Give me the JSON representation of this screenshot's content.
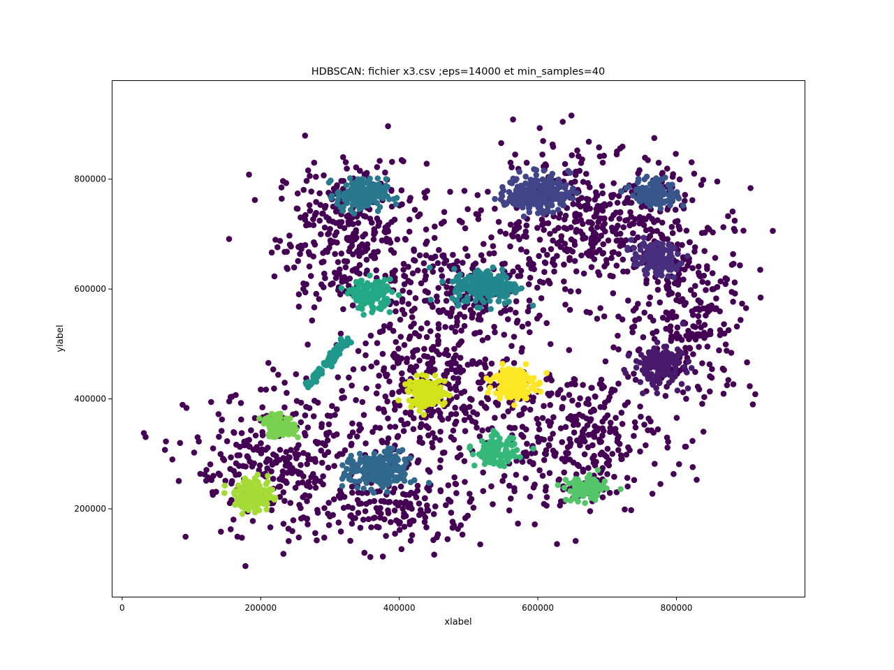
{
  "chart_data": {
    "type": "scatter",
    "title": "HDBSCAN: fichier x3.csv ;eps=14000 et min_samples=40",
    "xlabel": "xlabel",
    "ylabel": "ylabel",
    "xlim": [
      -15000,
      985000
    ],
    "ylim": [
      40000,
      980000
    ],
    "xticks": [
      0,
      200000,
      400000,
      600000,
      800000
    ],
    "yticks": [
      200000,
      400000,
      600000,
      800000
    ],
    "grid": false,
    "legend": "none",
    "noise_color": "#440154",
    "clusters": [
      {
        "label": 0,
        "center": [
          775000,
          460000
        ],
        "spread": [
          30000,
          30000
        ],
        "count": 150,
        "color": "#481a6c"
      },
      {
        "label": 1,
        "center": [
          770000,
          655000
        ],
        "spread": [
          28000,
          25000
        ],
        "count": 130,
        "color": "#472f7d"
      },
      {
        "label": 2,
        "center": [
          600000,
          775000
        ],
        "spread": [
          38000,
          28000
        ],
        "count": 230,
        "color": "#414487"
      },
      {
        "label": 3,
        "center": [
          770000,
          775000
        ],
        "spread": [
          28000,
          22000
        ],
        "count": 120,
        "color": "#39568c"
      },
      {
        "label": 4,
        "center": [
          370000,
          270000
        ],
        "spread": [
          40000,
          28000
        ],
        "count": 200,
        "color": "#31688e"
      },
      {
        "label": 5,
        "center": [
          345000,
          770000
        ],
        "spread": [
          30000,
          25000
        ],
        "count": 160,
        "color": "#2a788e"
      },
      {
        "label": 6,
        "center": [
          525000,
          605000
        ],
        "spread": [
          40000,
          27000
        ],
        "count": 200,
        "color": "#23888e"
      },
      {
        "label": 7,
        "center": [
          295000,
          465000
        ],
        "spread": [
          20000,
          11000
        ],
        "count": 90,
        "color": "#1f988b",
        "shape": "diagonal"
      },
      {
        "label": 8,
        "center": [
          360000,
          590000
        ],
        "spread": [
          24000,
          22000
        ],
        "count": 130,
        "color": "#22a884"
      },
      {
        "label": 9,
        "center": [
          540000,
          305000
        ],
        "spread": [
          25000,
          22000
        ],
        "count": 110,
        "color": "#35b779"
      },
      {
        "label": 10,
        "center": [
          670000,
          235000
        ],
        "spread": [
          23000,
          18000
        ],
        "count": 120,
        "color": "#54c568"
      },
      {
        "label": 11,
        "center": [
          225000,
          350000
        ],
        "spread": [
          20000,
          16000
        ],
        "count": 100,
        "color": "#7ad151"
      },
      {
        "label": 12,
        "center": [
          190000,
          225000
        ],
        "spread": [
          23000,
          24000
        ],
        "count": 150,
        "color": "#a5db36"
      },
      {
        "label": 13,
        "center": [
          440000,
          410000
        ],
        "spread": [
          22000,
          22000
        ],
        "count": 160,
        "color": "#d2e21b"
      },
      {
        "label": 14,
        "center": [
          565000,
          430000
        ],
        "spread": [
          24000,
          24000
        ],
        "count": 180,
        "color": "#fde725"
      }
    ],
    "noise_regions": [
      {
        "center": [
          330000,
          700000
        ],
        "spread": [
          90000,
          110000
        ],
        "count": 330
      },
      {
        "center": [
          680000,
          720000
        ],
        "spread": [
          130000,
          110000
        ],
        "count": 420
      },
      {
        "center": [
          820000,
          560000
        ],
        "spread": [
          80000,
          140000
        ],
        "count": 260
      },
      {
        "center": [
          230000,
          280000
        ],
        "spread": [
          110000,
          110000
        ],
        "count": 330
      },
      {
        "center": [
          450000,
          420000
        ],
        "spread": [
          100000,
          110000
        ],
        "count": 330
      },
      {
        "center": [
          650000,
          330000
        ],
        "spread": [
          110000,
          110000
        ],
        "count": 330
      },
      {
        "center": [
          500000,
          600000
        ],
        "spread": [
          90000,
          90000
        ],
        "count": 220
      },
      {
        "center": [
          400000,
          200000
        ],
        "spread": [
          100000,
          60000
        ],
        "count": 160
      }
    ]
  }
}
